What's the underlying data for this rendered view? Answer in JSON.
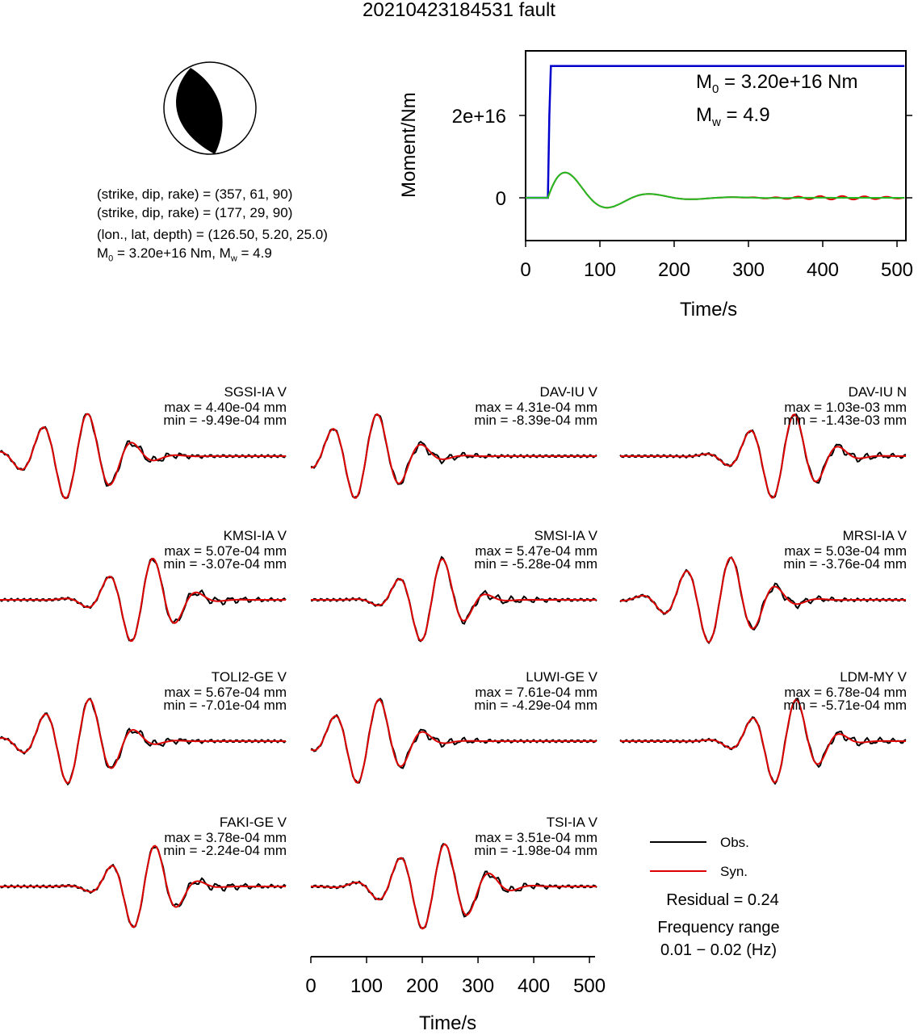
{
  "header": {
    "title": "20210423184531 fault"
  },
  "mechanism": {
    "line1": "(strike, dip, rake) = (357, 61, 90)",
    "line2": "(strike, dip, rake) = (177, 29, 90)",
    "line3": "(lon., lat, depth) = (126.50, 5.20, 25.0)",
    "m0_prefix": "M",
    "m0_sub": "0",
    "m0_rest": " = 3.20e+16 Nm, M",
    "mw_sub": "w",
    "mw_rest": " = 4.9"
  },
  "moment_plot": {
    "ylabel": "Moment/Nm",
    "xlabel": "Time/s",
    "annot_m0": "M",
    "annot_m0_sub": "0",
    "annot_m0_val": " = 3.20e+16 Nm",
    "annot_mw": "M",
    "annot_mw_sub": "w",
    "annot_mw_val": " = 4.9",
    "colors": {
      "cumulative": "#0000cc",
      "rate_obs": "#dd0000",
      "rate_syn": "#22bb22"
    }
  },
  "chart_data": {
    "type": "line",
    "moment_plot": {
      "xlabel": "Time/s",
      "ylabel": "Moment/Nm",
      "xlim": [
        0,
        510
      ],
      "ylim": [
        -1e+16,
        3.5e+16
      ],
      "xticks": [
        "0",
        "100",
        "200",
        "300",
        "400",
        "500"
      ],
      "yticks": [
        "0",
        "2e+16"
      ],
      "cumulative_moment": {
        "x": [
          0,
          30,
          32,
          34,
          510
        ],
        "y": [
          0,
          0,
          2e+16,
          3.2e+16,
          3.2e+16
        ]
      }
    },
    "waveforms": [
      {
        "station": "SGSI-IA V",
        "max": "max = 4.40e-04 mm",
        "min": "min = -9.49e-04 mm"
      },
      {
        "station": "DAV-IU V",
        "max": "max = 4.31e-04 mm",
        "min": "min = -8.39e-04 mm"
      },
      {
        "station": "DAV-IU N",
        "max": "max = 1.03e-03 mm",
        "min": "min = -1.43e-03 mm"
      },
      {
        "station": "KMSI-IA V",
        "max": "max = 5.07e-04 mm",
        "min": "min = -3.07e-04 mm"
      },
      {
        "station": "SMSI-IA V",
        "max": "max = 5.47e-04 mm",
        "min": "min = -5.28e-04 mm"
      },
      {
        "station": "MRSI-IA V",
        "max": "max = 5.03e-04 mm",
        "min": "min = -3.76e-04 mm"
      },
      {
        "station": "TOLI2-GE V",
        "max": "max = 5.67e-04 mm",
        "min": "min = -7.01e-04 mm"
      },
      {
        "station": "LUWI-GE V",
        "max": "max = 7.61e-04 mm",
        "min": "min = -4.29e-04 mm"
      },
      {
        "station": "LDM-MY V",
        "max": "max = 6.78e-04 mm",
        "min": "min = -5.71e-04 mm"
      },
      {
        "station": "FAKI-GE V",
        "max": "max = 3.78e-04 mm",
        "min": "min = -2.24e-04 mm"
      },
      {
        "station": "TSI-IA V",
        "max": "max = 3.51e-04 mm",
        "min": "min = -1.98e-04 mm"
      }
    ],
    "time_axis": {
      "xlabel": "Time/s",
      "xlim": [
        0,
        510
      ],
      "xticks": [
        "0",
        "100",
        "200",
        "300",
        "400",
        "500"
      ]
    }
  },
  "legend": {
    "obs": "Obs.",
    "syn": "Syn.",
    "obs_color": "#000000",
    "syn_color": "#dd0000"
  },
  "summary": {
    "residual": "Residual = 0.24",
    "freq_title": "Frequency range",
    "freq_range": "0.01 − 0.02 (Hz)"
  }
}
